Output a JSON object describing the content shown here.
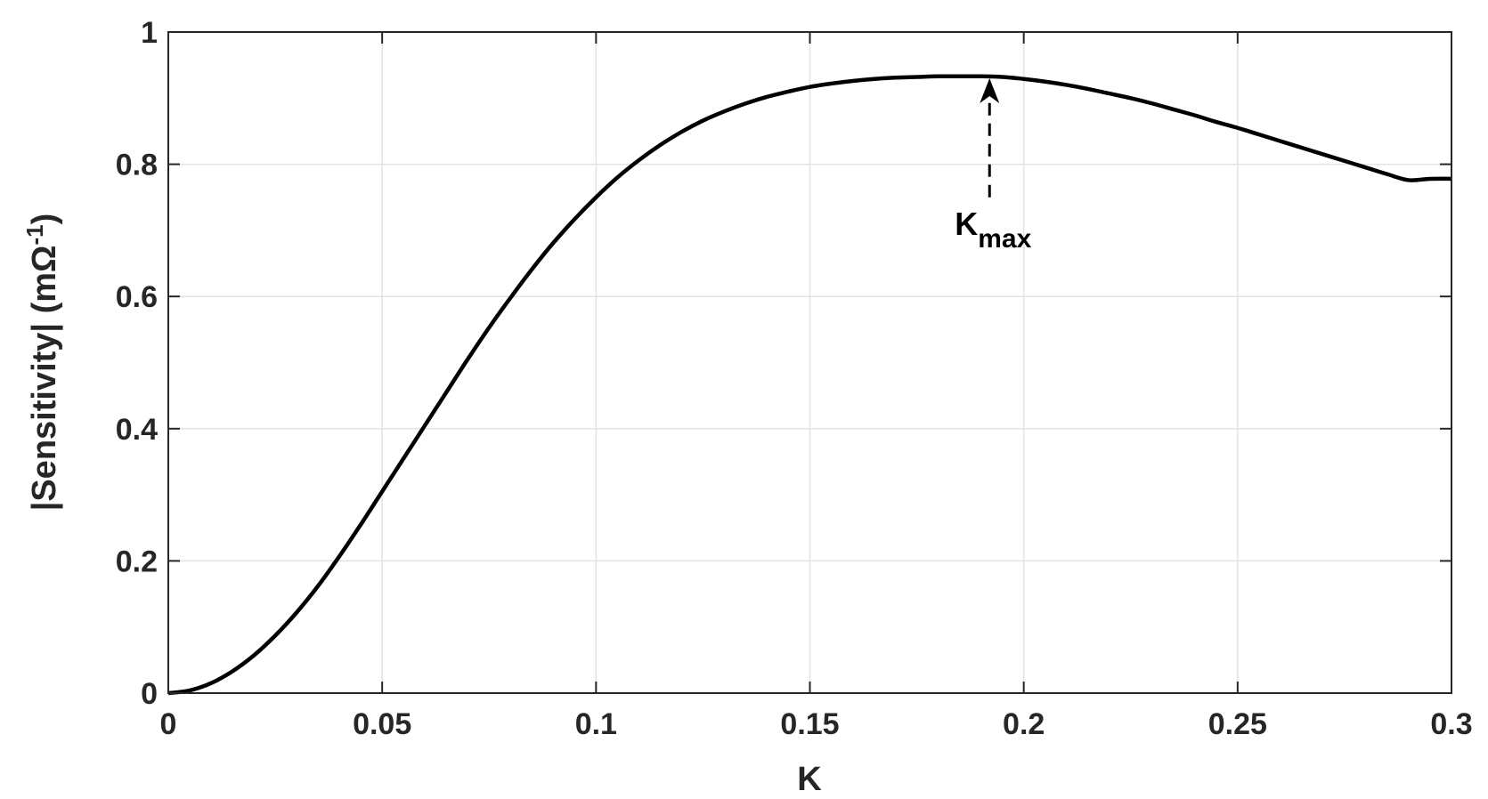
{
  "chart_data": {
    "type": "line",
    "xlabel": "K",
    "ylabel_parts": {
      "main": "|Sensitivity| (mΩ",
      "sup": "-1",
      "close": ")"
    },
    "xlim": [
      0,
      0.3
    ],
    "ylim": [
      0,
      1
    ],
    "xticks": [
      0,
      0.05,
      0.1,
      0.15,
      0.2,
      0.25,
      0.3
    ],
    "xtick_labels": [
      "0",
      "0.05",
      "0.1",
      "0.15",
      "0.2",
      "0.25",
      "0.3"
    ],
    "yticks": [
      0,
      0.2,
      0.4,
      0.6,
      0.8,
      1
    ],
    "ytick_labels": [
      "0",
      "0.2",
      "0.4",
      "0.6",
      "0.8",
      "1"
    ],
    "grid": true,
    "series": [
      {
        "color": "#000000",
        "x": [
          0,
          0.005,
          0.01,
          0.015,
          0.02,
          0.025,
          0.03,
          0.035,
          0.04,
          0.045,
          0.05,
          0.055,
          0.06,
          0.065,
          0.07,
          0.075,
          0.08,
          0.085,
          0.09,
          0.095,
          0.1,
          0.105,
          0.11,
          0.115,
          0.12,
          0.125,
          0.13,
          0.135,
          0.14,
          0.145,
          0.15,
          0.155,
          0.16,
          0.165,
          0.17,
          0.175,
          0.18,
          0.185,
          0.19,
          0.195,
          0.2,
          0.205,
          0.21,
          0.215,
          0.22,
          0.225,
          0.23,
          0.235,
          0.24,
          0.245,
          0.25,
          0.255,
          0.26,
          0.265,
          0.27,
          0.275,
          0.28,
          0.285,
          0.29,
          0.295,
          0.3
        ],
        "y": [
          0,
          0.004,
          0.015,
          0.033,
          0.057,
          0.087,
          0.122,
          0.162,
          0.207,
          0.255,
          0.305,
          0.355,
          0.405,
          0.455,
          0.505,
          0.553,
          0.598,
          0.641,
          0.681,
          0.717,
          0.75,
          0.78,
          0.806,
          0.829,
          0.849,
          0.866,
          0.88,
          0.892,
          0.902,
          0.91,
          0.917,
          0.922,
          0.926,
          0.929,
          0.931,
          0.932,
          0.933,
          0.933,
          0.933,
          0.932,
          0.929,
          0.925,
          0.92,
          0.914,
          0.907,
          0.9,
          0.892,
          0.883,
          0.874,
          0.864,
          0.855,
          0.845,
          0.835,
          0.825,
          0.815,
          0.805,
          0.795,
          0.785,
          0.776,
          0.778,
          0.778
        ]
      }
    ],
    "annotation": {
      "label_main": "K",
      "label_sub": "max",
      "x": 0.192,
      "y_arrow_tip": 0.93,
      "y_arrow_tail": 0.75,
      "style": "dashed-arrow"
    }
  }
}
